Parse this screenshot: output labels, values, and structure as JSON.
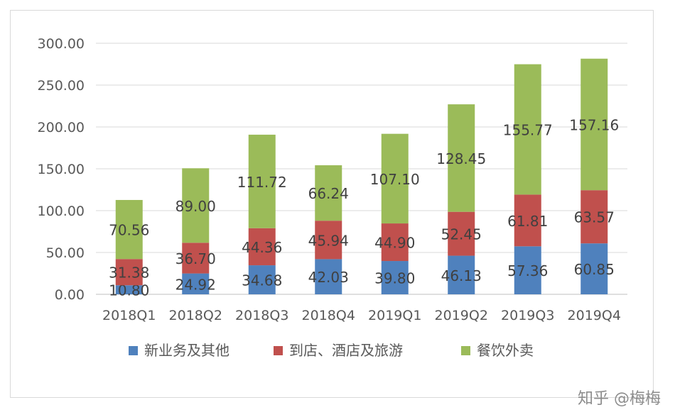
{
  "chart_data": {
    "type": "bar",
    "stacked": true,
    "categories": [
      "2018Q1",
      "2018Q2",
      "2018Q3",
      "2018Q4",
      "2019Q1",
      "2019Q2",
      "2019Q3",
      "2019Q4"
    ],
    "series": [
      {
        "name": "新业务及其他",
        "color": "#4f81bd",
        "values": [
          10.8,
          24.92,
          34.68,
          42.03,
          39.8,
          46.13,
          57.36,
          60.85
        ]
      },
      {
        "name": "到店、酒店及旅游",
        "color": "#c0504d",
        "values": [
          31.38,
          36.7,
          44.36,
          45.94,
          44.9,
          52.45,
          61.81,
          63.57
        ]
      },
      {
        "name": "餐饮外卖",
        "color": "#9bbb59",
        "values": [
          70.56,
          89.0,
          111.72,
          66.24,
          107.1,
          128.45,
          155.77,
          157.16
        ]
      }
    ],
    "ylim": [
      0,
      300
    ],
    "yticks": [
      "0.00",
      "50.00",
      "100.00",
      "150.00",
      "200.00",
      "250.00",
      "300.00"
    ],
    "grid": true,
    "legend_position": "bottom",
    "data_labels": true
  },
  "watermark": "知乎 @梅梅"
}
